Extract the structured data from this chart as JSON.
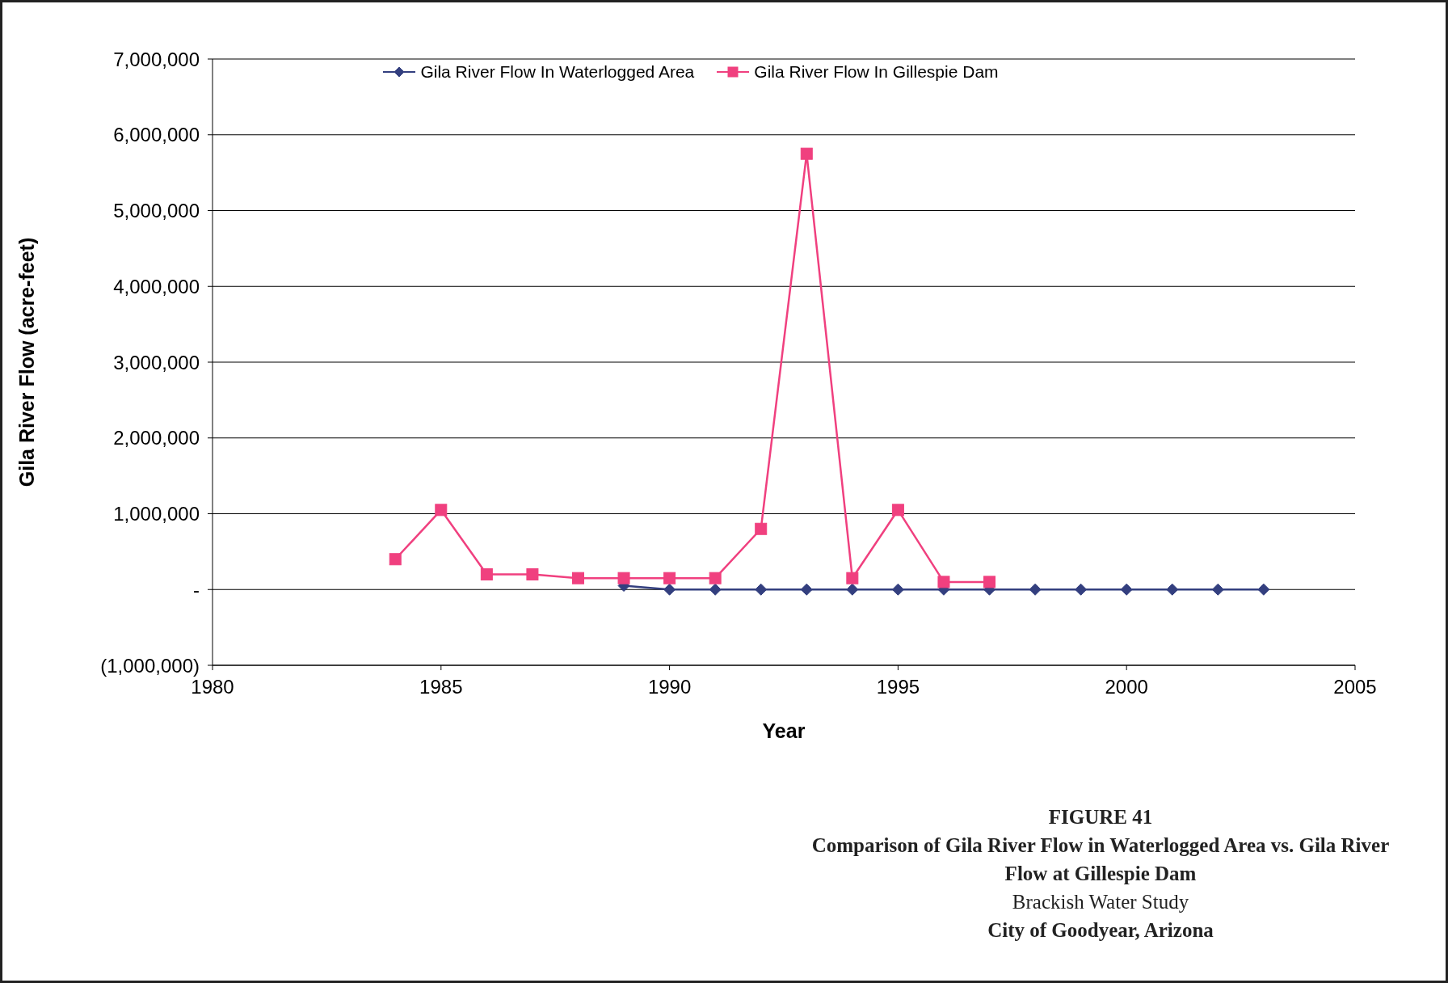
{
  "chart_data": {
    "type": "line",
    "title": "FIGURE 41",
    "subtitle": "Comparison of Gila River Flow in Waterlogged Area vs. Gila River Flow at Gillespie Dam",
    "annotations": [
      "Brackish Water Study",
      "City of Goodyear, Arizona"
    ],
    "xlabel": "Year",
    "ylabel": "Gila River Flow (acre-feet)",
    "series": [
      {
        "name": "Gila River Flow In Waterlogged Area",
        "color": "#333f7f",
        "marker": "diamond",
        "x": [
          1989,
          1990,
          1991,
          1992,
          1993,
          1994,
          1995,
          1996,
          1997,
          1998,
          1999,
          2000,
          2001,
          2002,
          2003
        ],
        "values": [
          50000,
          0,
          0,
          0,
          0,
          0,
          0,
          0,
          0,
          0,
          0,
          0,
          0,
          0,
          0
        ]
      },
      {
        "name": "Gila River Flow In Gillespie Dam",
        "color": "#f0407f",
        "marker": "square",
        "x": [
          1984,
          1985,
          1986,
          1987,
          1988,
          1989,
          1990,
          1991,
          1992,
          1993,
          1994,
          1995,
          1996,
          1997
        ],
        "values": [
          400000,
          1050000,
          200000,
          200000,
          150000,
          150000,
          150000,
          150000,
          800000,
          5750000,
          150000,
          1050000,
          100000,
          100000
        ]
      }
    ],
    "xlim": [
      1980,
      2005
    ],
    "xticks": [
      1980,
      1985,
      1990,
      1995,
      2000,
      2005
    ],
    "ylim": [
      -1000000,
      7000000
    ],
    "yticks": [
      {
        "value": -1000000,
        "label": "(1,000,000)"
      },
      {
        "value": 0,
        "label": "-"
      },
      {
        "value": 1000000,
        "label": "1,000,000"
      },
      {
        "value": 2000000,
        "label": "2,000,000"
      },
      {
        "value": 3000000,
        "label": "3,000,000"
      },
      {
        "value": 4000000,
        "label": "4,000,000"
      },
      {
        "value": 5000000,
        "label": "5,000,000"
      },
      {
        "value": 6000000,
        "label": "6,000,000"
      },
      {
        "value": 7000000,
        "label": "7,000,000"
      }
    ],
    "grid": "y",
    "legend": "top"
  }
}
